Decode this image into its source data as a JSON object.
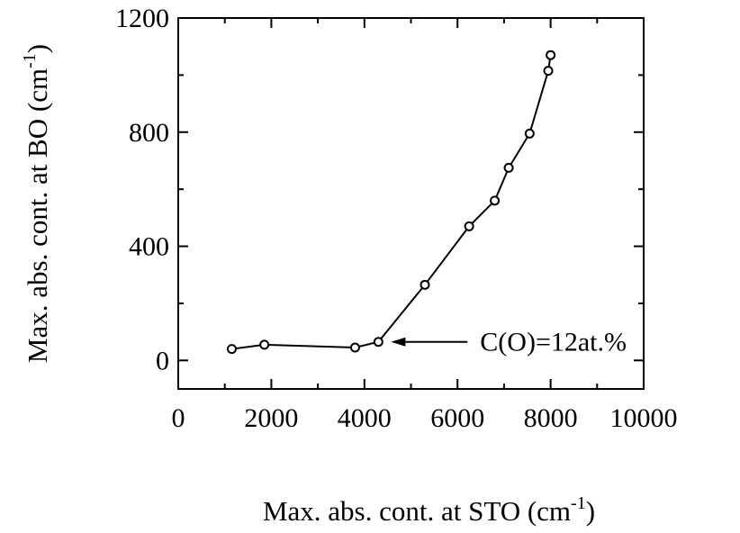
{
  "chart_data": {
    "type": "line",
    "title": "",
    "xlabel": {
      "main": "Max. abs. cont. at STO (cm",
      "sup": "-1",
      "tail": ")"
    },
    "ylabel": {
      "main": "Max. abs. cont. at BO (cm",
      "sup": "-1",
      "tail": ")"
    },
    "xlim": [
      0,
      10000
    ],
    "ylim": [
      -100,
      1200
    ],
    "xticks": [
      0,
      2000,
      4000,
      6000,
      8000,
      10000
    ],
    "xtick_labels": [
      "0",
      "2000",
      "4000",
      "6000",
      "8000",
      "10000"
    ],
    "xminor": [
      1000,
      3000,
      5000,
      7000,
      9000
    ],
    "yticks": [
      0,
      400,
      800,
      1200
    ],
    "ytick_labels": [
      "0",
      "400",
      "800",
      "1200"
    ],
    "yminor": [
      200,
      600,
      1000
    ],
    "grid": false,
    "series": [
      {
        "x": [
          1150,
          1850,
          3800,
          4300,
          5300,
          6250,
          6800,
          7100,
          7550,
          7950,
          8000
        ],
        "y": [
          40,
          55,
          45,
          65,
          265,
          470,
          560,
          675,
          795,
          1015,
          1070
        ],
        "marker": "open-circle",
        "color": "#000000"
      }
    ],
    "annotations": [
      {
        "text": "C(O)=12at.%",
        "arrow_to": {
          "x": 4300,
          "y": 65
        }
      }
    ]
  }
}
